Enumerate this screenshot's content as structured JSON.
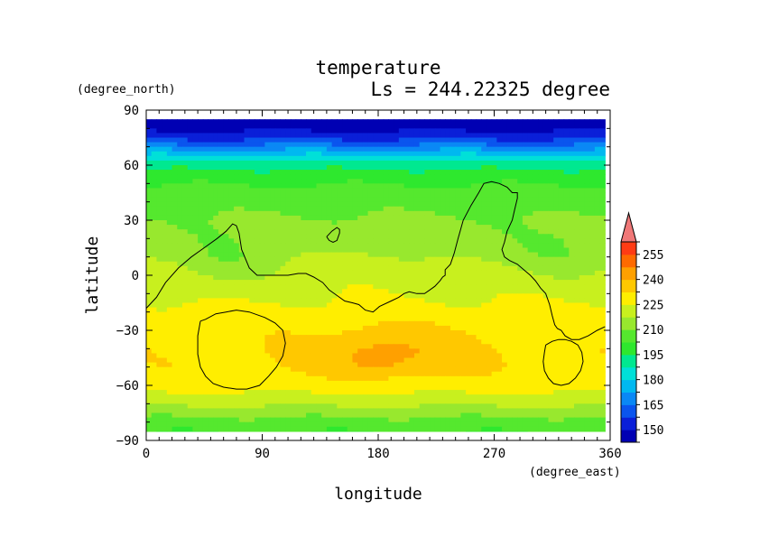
{
  "chart_data": {
    "type": "heatmap",
    "title": "temperature",
    "subtitle": "Ls = 244.22325 degree",
    "xlabel": "longitude",
    "ylabel": "latitude",
    "x_units": "(degree_east)",
    "y_units": "(degree_north)",
    "xlim": [
      0,
      360
    ],
    "ylim": [
      -90,
      90
    ],
    "x_ticks": [
      0,
      90,
      180,
      270,
      360
    ],
    "x_tick_labels": [
      "0",
      "90",
      "180",
      "270",
      "360"
    ],
    "y_ticks": [
      90,
      60,
      30,
      0,
      -30,
      -60,
      -90
    ],
    "y_tick_labels": [
      "90",
      "60",
      "30",
      "0",
      "−30",
      "−60",
      "−90"
    ],
    "data_extent": {
      "lon": [
        0,
        356
      ],
      "lat": [
        -85,
        85
      ]
    },
    "colorbar": {
      "levels": [
        142.5,
        150,
        157.5,
        165,
        172.5,
        180,
        187.5,
        195,
        202.5,
        210,
        217.5,
        225,
        232.5,
        240,
        247.5,
        255,
        262.5
      ],
      "colors": [
        "#0000b3",
        "#0a1fd8",
        "#0a55ee",
        "#0a88f5",
        "#00b8f0",
        "#00e0d8",
        "#00e890",
        "#2ee82e",
        "#55e82e",
        "#98e82e",
        "#c8f01e",
        "#ffee00",
        "#ffc800",
        "#ffa000",
        "#ff6a00",
        "#ff3b14",
        "#ff1e1e"
      ],
      "tick_values": [
        150,
        165,
        180,
        195,
        210,
        225,
        240,
        255
      ],
      "tick_labels": [
        "150",
        "165",
        "180",
        "195",
        "210",
        "225",
        "240",
        "255"
      ],
      "over_color": "#f07878"
    },
    "field_model": {
      "note": "zonal temperature profile (K) at given latitudes plus regional anomalies",
      "profile_lat": [
        85,
        80,
        75,
        70,
        65,
        60,
        55,
        50,
        45,
        40,
        35,
        30,
        20,
        10,
        0,
        -10,
        -20,
        -25,
        -30,
        -40,
        -50,
        -60,
        -65,
        -70,
        -75,
        -80,
        -85
      ],
      "profile_temp": [
        146,
        148,
        155,
        168,
        182,
        192,
        198,
        202,
        205,
        207,
        209,
        211,
        213,
        216,
        221,
        224,
        227,
        229,
        230,
        231,
        231,
        228,
        224,
        219,
        213,
        207,
        203
      ],
      "anomalies": [
        {
          "lon": 190,
          "lat": -42,
          "dlon": 65,
          "dlat": 15,
          "amp": 9
        },
        {
          "lon": 180,
          "lat": -45,
          "dlon": 22,
          "dlat": 7,
          "amp": 6
        },
        {
          "lon": 60,
          "lat": 5,
          "dlon": 35,
          "dlat": 15,
          "amp": -6
        },
        {
          "lon": 320,
          "lat": 10,
          "dlon": 40,
          "dlat": 15,
          "amp": -5
        },
        {
          "lon": 175,
          "lat": 10,
          "dlon": 45,
          "dlat": 14,
          "amp": 3
        }
      ]
    },
    "contours": [
      {
        "lon": [
          0,
          8,
          15,
          25,
          35,
          45,
          55,
          62,
          67,
          70,
          72,
          74,
          80,
          86,
          92,
          100,
          110,
          118,
          124,
          130,
          137,
          142,
          148,
          154,
          160,
          165,
          170,
          176,
          181,
          190,
          196,
          200,
          204,
          210,
          216,
          220,
          224,
          228,
          230,
          232,
          232,
          236,
          239,
          242,
          246,
          252,
          258,
          262,
          268,
          274,
          280,
          284,
          288,
          288,
          286,
          284,
          280,
          278,
          276,
          278,
          282,
          288,
          293,
          298,
          302,
          306,
          310,
          313,
          315,
          317,
          319,
          322,
          325,
          330,
          336,
          343,
          350,
          356
        ],
        "lat": [
          -18,
          -12,
          -4,
          4,
          10,
          15,
          20,
          24,
          28,
          27,
          23,
          14,
          4,
          0,
          0,
          0,
          0,
          1,
          1,
          -1,
          -4,
          -8,
          -11,
          -14,
          -15,
          -16,
          -19,
          -20,
          -17,
          -14,
          -12,
          -10,
          -9,
          -10,
          -10,
          -8,
          -6,
          -3,
          -1,
          0,
          3,
          6,
          12,
          20,
          30,
          38,
          45,
          50,
          51,
          50,
          48,
          45,
          45,
          42,
          36,
          30,
          24,
          18,
          14,
          10,
          8,
          6,
          3,
          0,
          -3,
          -7,
          -10,
          -16,
          -22,
          -27,
          -29,
          -30,
          -33,
          -35,
          -35,
          -33,
          -30,
          -28
        ]
      },
      {
        "lon": [
          140,
          144,
          148,
          150,
          150,
          148,
          145,
          142,
          140
        ],
        "lat": [
          21,
          24,
          26,
          25,
          23,
          19,
          18,
          19,
          21
        ]
      },
      {
        "lon": [
          42,
          46,
          54,
          62,
          70,
          80,
          92,
          100,
          106,
          108,
          106,
          101,
          95,
          88,
          78,
          70,
          60,
          52,
          46,
          42,
          40,
          40,
          42
        ],
        "lat": [
          -25,
          -24,
          -21,
          -20,
          -19,
          -20,
          -23,
          -26,
          -30,
          -37,
          -44,
          -50,
          -55,
          -60,
          -62,
          -62,
          -61,
          -59,
          -55,
          -50,
          -43,
          -33,
          -25
        ]
      },
      {
        "lon": [
          310,
          315,
          320,
          325,
          330,
          335,
          338,
          339,
          337,
          333,
          328,
          322,
          316,
          312,
          309,
          308,
          309,
          310
        ],
        "lat": [
          -38,
          -36,
          -35,
          -35,
          -36,
          -38,
          -42,
          -47,
          -52,
          -56,
          -59,
          -60,
          -59,
          -56,
          -52,
          -47,
          -42,
          -38
        ]
      }
    ]
  }
}
